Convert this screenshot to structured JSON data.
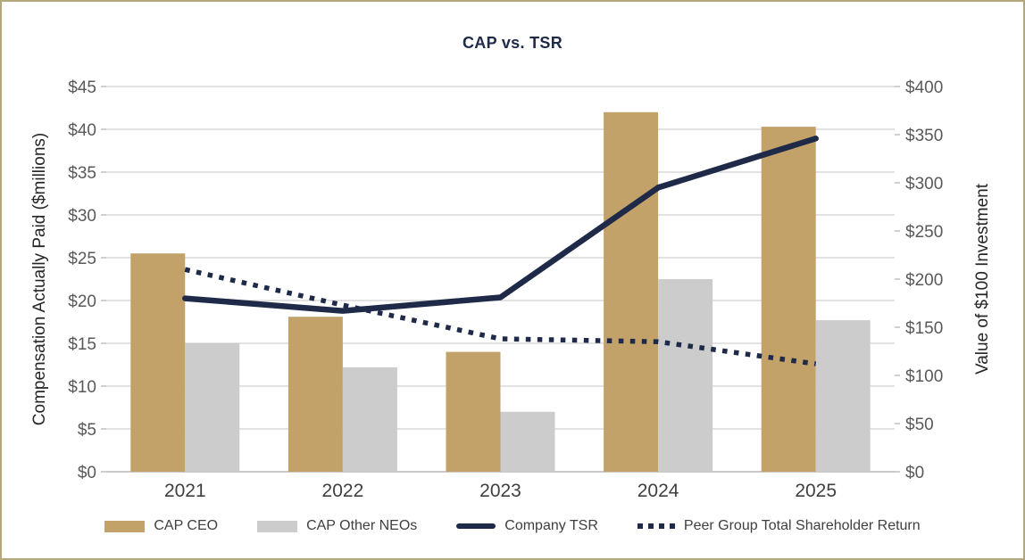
{
  "page": {
    "background_color": "#FFFFFF",
    "border_color": "#B3A77B"
  },
  "chart_data": {
    "type": "combo-bar-line",
    "title": "CAP vs. TSR",
    "title_color": "#1E2A48",
    "categories": [
      "2021",
      "2022",
      "2023",
      "2024",
      "2025"
    ],
    "left_axis": {
      "label": "Compensation Actually Paid ($millions)",
      "min": 0,
      "max": 45,
      "step": 5,
      "tick_labels": [
        "$0",
        "$5",
        "$10",
        "$15",
        "$20",
        "$25",
        "$30",
        "$35",
        "$40",
        "$45"
      ]
    },
    "right_axis": {
      "label": "Value of $100 Investment",
      "min": 0,
      "max": 400,
      "step": 50,
      "tick_labels": [
        "$0",
        "$50",
        "$100",
        "$150",
        "$200",
        "$250",
        "$300",
        "$350",
        "$400"
      ]
    },
    "series": [
      {
        "name": "CAP CEO",
        "type": "bar",
        "axis": "left",
        "color": "#C2A269",
        "values": [
          25.5,
          18.1,
          14,
          42,
          40.3
        ]
      },
      {
        "name": "CAP Other NEOs",
        "type": "bar",
        "axis": "left",
        "color": "#CCCCCC",
        "values": [
          15,
          12.2,
          7,
          22.5,
          17.7
        ]
      },
      {
        "name": "Company TSR",
        "type": "line",
        "line_style": "solid",
        "axis": "right",
        "color": "#1E2A48",
        "values": [
          180,
          167,
          181,
          295,
          346
        ]
      },
      {
        "name": "Peer Group Total Shareholder Return",
        "type": "line",
        "line_style": "dotted",
        "axis": "right",
        "color": "#1E2A48",
        "values": [
          210,
          173,
          138,
          135,
          112
        ]
      }
    ],
    "grid": true,
    "gridline_color": "#D9D9D9",
    "axis_line_color": "#C9C9C9",
    "tick_mark_color": "#BFBFBF",
    "tick_label_color": "#595959",
    "x_label_color": "#404040",
    "axis_title_color": "#262626",
    "legend_position": "bottom",
    "legend_text_color": "#3F3F3F"
  }
}
